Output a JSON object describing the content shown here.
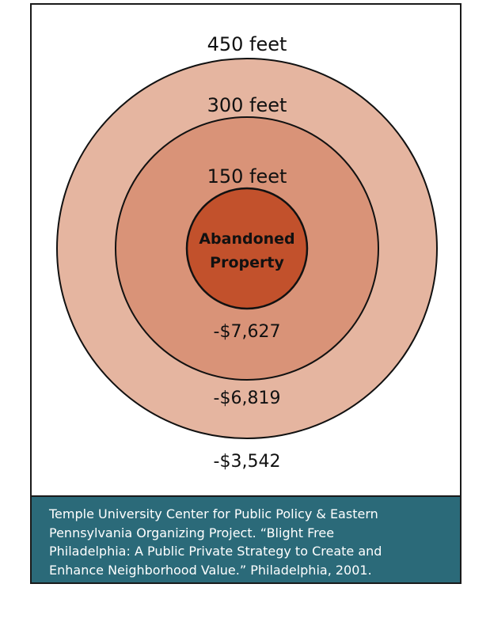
{
  "diagram": {
    "rings": [
      {
        "distance_label": "450 feet",
        "value_label": "-$3,542",
        "fill": "#e5b5a0"
      },
      {
        "distance_label": "300 feet",
        "value_label": "-$6,819",
        "fill": "#e5b5a0"
      },
      {
        "distance_label": "150 feet",
        "value_label": "-$7,627",
        "fill": "#d99378"
      }
    ],
    "center": {
      "label_line1": "Abandoned",
      "label_line2": "Property",
      "fill": "#c2512c"
    },
    "outline_color": "#111111"
  },
  "caption": {
    "background": "#2b6a79",
    "lines": [
      "Temple University Center for Public Policy & Eastern",
      "Pennsylvania Organizing Project. “Blight Free",
      "Philadelphia: A Public Private Strategy to Create and",
      "Enhance Neighborhood Value.” Philadelphia, 2001."
    ]
  }
}
